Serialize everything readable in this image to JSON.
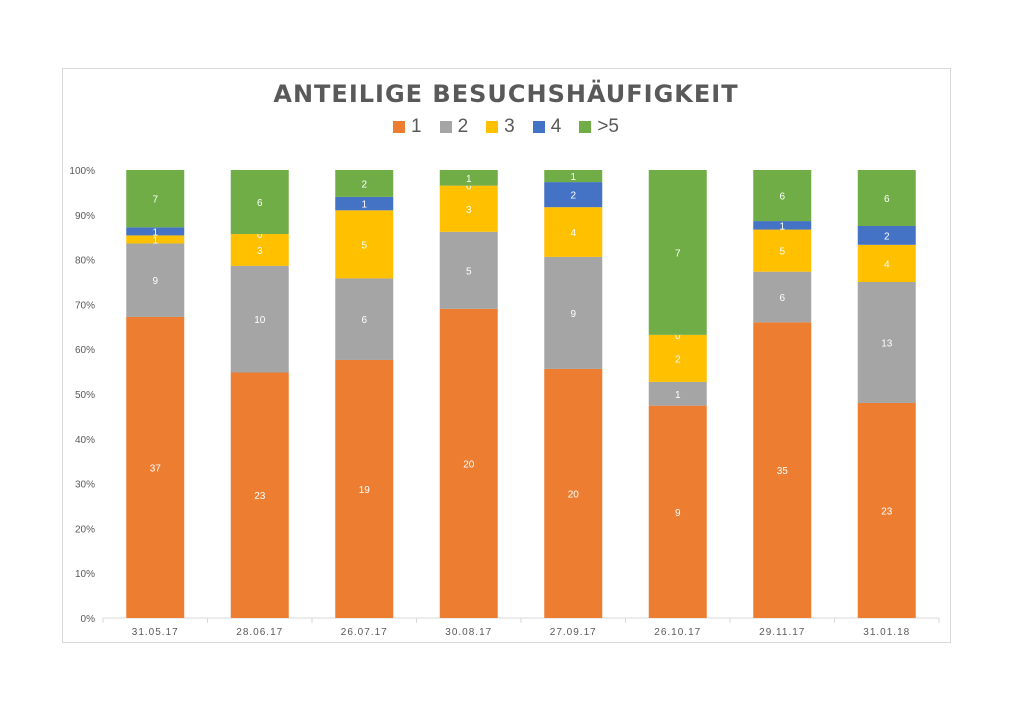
{
  "chart_data": {
    "type": "bar",
    "stacked": "percent",
    "title": "ANTEILIGE BESUCHSHÄUFIGKEIT",
    "xlabel": "",
    "ylabel": "",
    "categories": [
      "31.05.17",
      "28.06.17",
      "26.07.17",
      "30.08.17",
      "27.09.17",
      "26.10.17",
      "29.11.17",
      "31.01.18"
    ],
    "yticks": [
      "0%",
      "10%",
      "20%",
      "30%",
      "40%",
      "50%",
      "60%",
      "70%",
      "80%",
      "90%",
      "100%"
    ],
    "ylim": [
      0,
      100
    ],
    "legend_position": "top",
    "grid": false,
    "series": [
      {
        "name": "1",
        "color": "#ED7D31",
        "values": [
          37,
          23,
          19,
          20,
          20,
          9,
          35,
          23
        ]
      },
      {
        "name": "2",
        "color": "#A5A5A5",
        "values": [
          9,
          10,
          6,
          5,
          9,
          1,
          6,
          13
        ]
      },
      {
        "name": "3",
        "color": "#FFC000",
        "values": [
          1,
          3,
          5,
          3,
          4,
          2,
          5,
          4
        ]
      },
      {
        "name": "4",
        "color": "#4472C4",
        "values": [
          1,
          0,
          1,
          0,
          2,
          0,
          1,
          2
        ]
      },
      {
        "name": ">5",
        "color": "#70AD47",
        "values": [
          7,
          6,
          2,
          1,
          1,
          7,
          6,
          6
        ]
      }
    ],
    "labels": [
      [
        "37",
        "23",
        "19",
        "20",
        "20",
        "9",
        "35",
        "23"
      ],
      [
        "9",
        "10",
        "6",
        "5",
        "9",
        "1",
        "6",
        "13"
      ],
      [
        "1",
        "3",
        "5",
        "3",
        "4",
        "2",
        "5",
        "4"
      ],
      [
        "1",
        "0",
        "1",
        "0",
        "2",
        "0",
        "1",
        "2"
      ],
      [
        "7",
        "6",
        "2",
        "1",
        "1",
        "7",
        "6",
        "6"
      ]
    ],
    "segment_shares": [
      [
        67.2,
        54.8,
        57.6,
        69.0,
        55.6,
        47.4,
        66.0,
        48.0
      ],
      [
        16.4,
        23.8,
        18.2,
        17.2,
        25.0,
        5.3,
        11.3,
        27.0
      ],
      [
        1.8,
        7.1,
        15.2,
        10.3,
        11.1,
        10.5,
        9.4,
        8.3
      ],
      [
        1.8,
        0.0,
        3.0,
        0.0,
        5.6,
        0.0,
        1.9,
        4.2
      ],
      [
        12.8,
        14.3,
        6.0,
        3.5,
        2.7,
        36.8,
        11.4,
        12.5
      ]
    ]
  }
}
